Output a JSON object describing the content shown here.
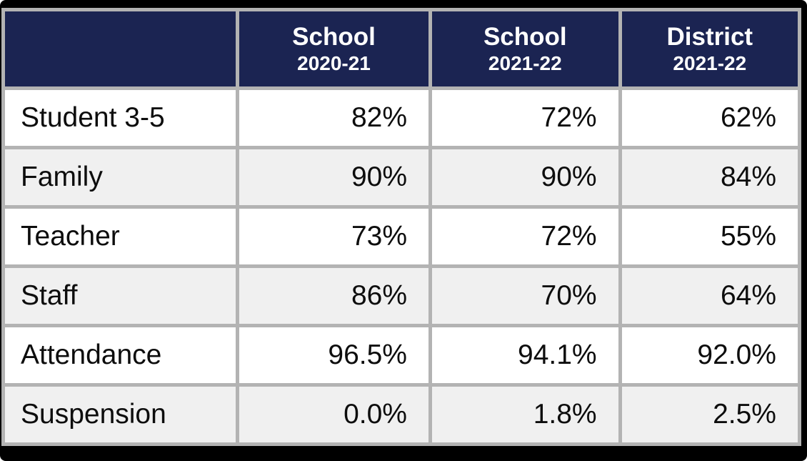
{
  "table": {
    "header": {
      "corner": "",
      "cols": [
        {
          "title": "School",
          "subtitle": "2020-21"
        },
        {
          "title": "School",
          "subtitle": "2021-22"
        },
        {
          "title": "District",
          "subtitle": "2021-22"
        }
      ]
    },
    "rows": [
      {
        "label": "Student 3-5",
        "values": [
          "82%",
          "72%",
          "62%"
        ]
      },
      {
        "label": "Family",
        "values": [
          "90%",
          "90%",
          "84%"
        ]
      },
      {
        "label": "Teacher",
        "values": [
          "73%",
          "72%",
          "55%"
        ]
      },
      {
        "label": "Staff",
        "values": [
          "86%",
          "70%",
          "64%"
        ]
      },
      {
        "label": "Attendance",
        "values": [
          "96.5%",
          "94.1%",
          "92.0%"
        ]
      },
      {
        "label": "Suspension",
        "values": [
          "0.0%",
          "1.8%",
          "2.5%"
        ]
      }
    ]
  },
  "colors": {
    "header_bg": "#1b2452",
    "header_text": "#ffffff",
    "gridline": "#b3b3b3",
    "row_white": "#ffffff",
    "row_stripe": "#f0f0f0",
    "outer_border": "#000000",
    "body_text": "#0d0d0d"
  },
  "chart_data": {
    "type": "table",
    "columns": [
      "",
      "School 2020-21",
      "School 2021-22",
      "District 2021-22"
    ],
    "rows": [
      [
        "Student 3-5",
        "82%",
        "72%",
        "62%"
      ],
      [
        "Family",
        "90%",
        "90%",
        "84%"
      ],
      [
        "Teacher",
        "73%",
        "72%",
        "55%"
      ],
      [
        "Staff",
        "86%",
        "70%",
        "64%"
      ],
      [
        "Attendance",
        "96.5%",
        "94.1%",
        "92.0%"
      ],
      [
        "Suspension",
        "0.0%",
        "1.8%",
        "2.5%"
      ]
    ],
    "notes": "School climate survey / attendance / suspension percentages table with navy header, silver gridlines, alternating white and light-gray rows, black outer frame."
  }
}
